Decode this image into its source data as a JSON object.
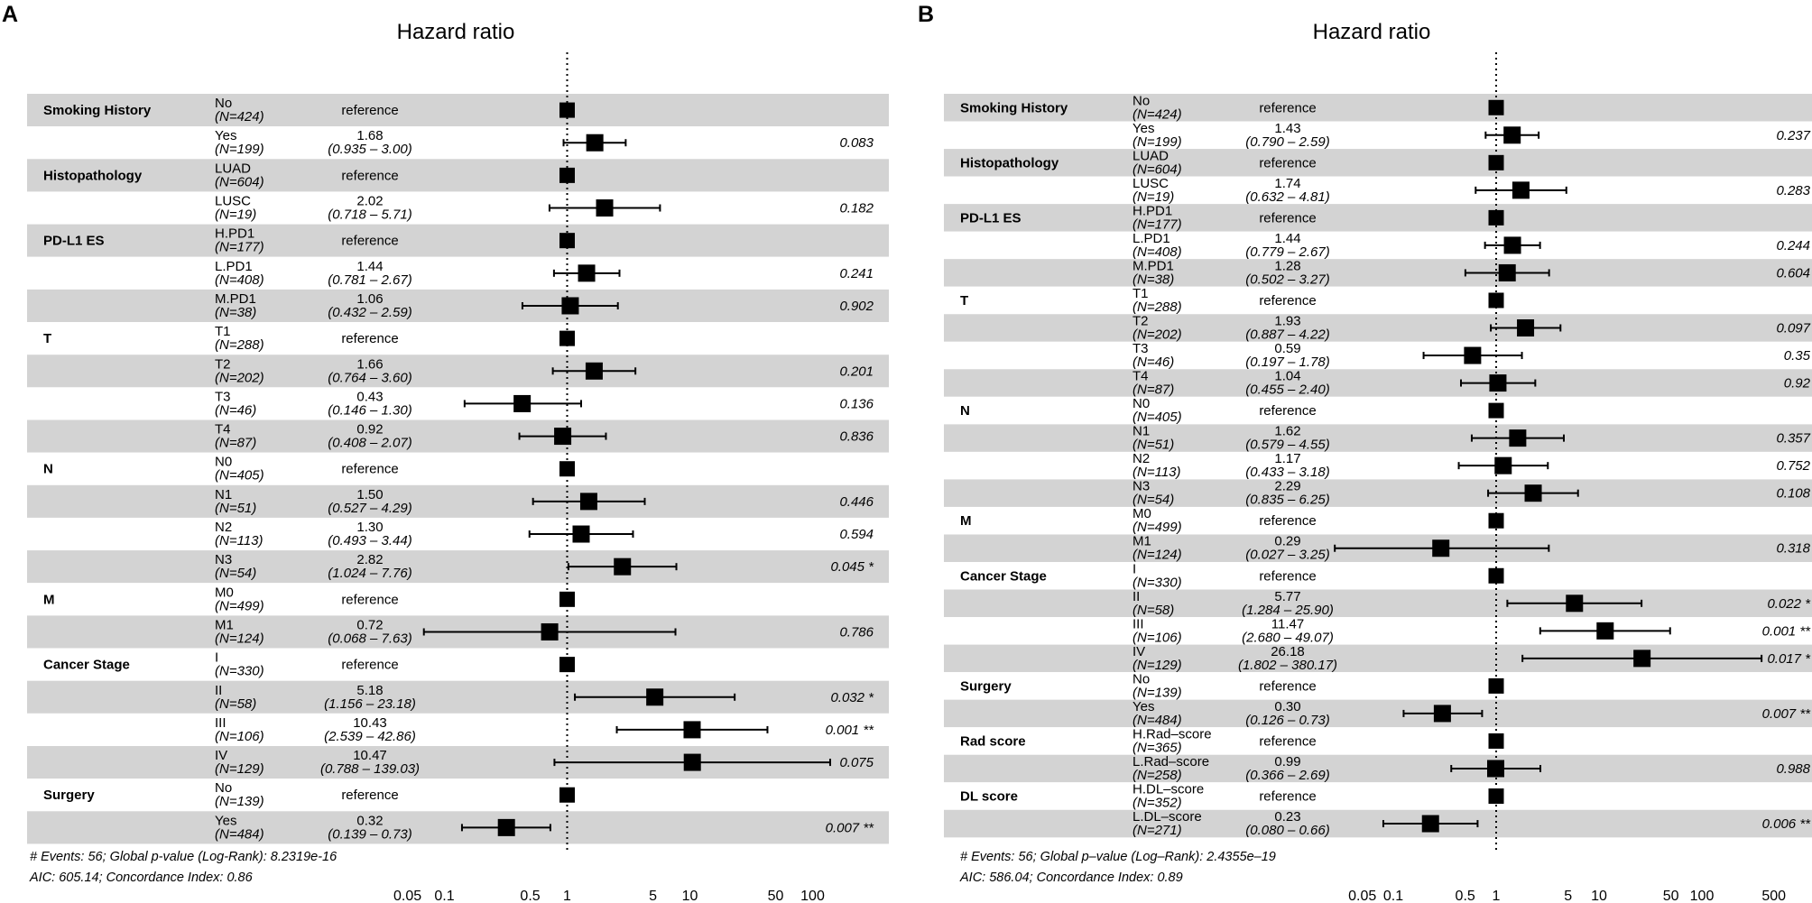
{
  "chart_data": [
    {
      "type": "forest",
      "panel": "A",
      "title": "Hazard ratio",
      "xscale": "log",
      "xlim": [
        0.04,
        400
      ],
      "reference_line": 1,
      "ticks": [
        {
          "value": 0.05,
          "label": "0.05"
        },
        {
          "value": 0.1,
          "label": "0.1"
        },
        {
          "value": 0.5,
          "label": "0.5"
        },
        {
          "value": 1,
          "label": "1"
        },
        {
          "value": 5,
          "label": "5"
        },
        {
          "value": 10,
          "label": "10"
        },
        {
          "value": 50,
          "label": "50"
        },
        {
          "value": 100,
          "label": "100"
        }
      ],
      "rows": [
        {
          "variable": "Smoking History",
          "level": "No",
          "n": "(N=424)",
          "ref": true,
          "est_text": "reference"
        },
        {
          "level": "Yes",
          "n": "(N=199)",
          "hr": 1.68,
          "lo": 0.935,
          "hi": 3.0,
          "est_text": "1.68",
          "ci_text": "(0.935 –   3.00)",
          "p": "0.083"
        },
        {
          "variable": "Histopathology",
          "level": "LUAD",
          "n": "(N=604)",
          "ref": true,
          "est_text": "reference"
        },
        {
          "level": "LUSC",
          "n": "(N=19)",
          "hr": 2.02,
          "lo": 0.718,
          "hi": 5.71,
          "est_text": "2.02",
          "ci_text": "(0.718 –   5.71)",
          "p": "0.182"
        },
        {
          "variable": "PD-L1 ES",
          "level": "H.PD1",
          "n": "(N=177)",
          "ref": true,
          "est_text": "reference"
        },
        {
          "level": "L.PD1",
          "n": "(N=408)",
          "hr": 1.44,
          "lo": 0.781,
          "hi": 2.67,
          "est_text": "1.44",
          "ci_text": "(0.781 –   2.67)",
          "p": "0.241"
        },
        {
          "level": "M.PD1",
          "n": "(N=38)",
          "hr": 1.06,
          "lo": 0.432,
          "hi": 2.59,
          "est_text": "1.06",
          "ci_text": "(0.432 –   2.59)",
          "p": "0.902"
        },
        {
          "variable": "T",
          "level": "T1",
          "n": "(N=288)",
          "ref": true,
          "est_text": "reference"
        },
        {
          "level": "T2",
          "n": "(N=202)",
          "hr": 1.66,
          "lo": 0.764,
          "hi": 3.6,
          "est_text": "1.66",
          "ci_text": "(0.764 –   3.60)",
          "p": "0.201"
        },
        {
          "level": "T3",
          "n": "(N=46)",
          "hr": 0.43,
          "lo": 0.146,
          "hi": 1.3,
          "est_text": "0.43",
          "ci_text": "(0.146 –   1.30)",
          "p": "0.136"
        },
        {
          "level": "T4",
          "n": "(N=87)",
          "hr": 0.92,
          "lo": 0.408,
          "hi": 2.07,
          "est_text": "0.92",
          "ci_text": "(0.408 –   2.07)",
          "p": "0.836"
        },
        {
          "variable": "N",
          "level": "N0",
          "n": "(N=405)",
          "ref": true,
          "est_text": "reference"
        },
        {
          "level": "N1",
          "n": "(N=51)",
          "hr": 1.5,
          "lo": 0.527,
          "hi": 4.29,
          "est_text": "1.50",
          "ci_text": "(0.527 –   4.29)",
          "p": "0.446"
        },
        {
          "level": "N2",
          "n": "(N=113)",
          "hr": 1.3,
          "lo": 0.493,
          "hi": 3.44,
          "est_text": "1.30",
          "ci_text": "(0.493 –   3.44)",
          "p": "0.594"
        },
        {
          "level": "N3",
          "n": "(N=54)",
          "hr": 2.82,
          "lo": 1.024,
          "hi": 7.76,
          "est_text": "2.82",
          "ci_text": "(1.024 –   7.76)",
          "p": "0.045 *"
        },
        {
          "variable": "M",
          "level": "M0",
          "n": "(N=499)",
          "ref": true,
          "est_text": "reference"
        },
        {
          "level": "M1",
          "n": "(N=124)",
          "hr": 0.72,
          "lo": 0.068,
          "hi": 7.63,
          "est_text": "0.72",
          "ci_text": "(0.068 –   7.63)",
          "p": "0.786"
        },
        {
          "variable": "Cancer Stage",
          "level": "I",
          "n": "(N=330)",
          "ref": true,
          "est_text": "reference"
        },
        {
          "level": "II",
          "n": "(N=58)",
          "hr": 5.18,
          "lo": 1.156,
          "hi": 23.18,
          "est_text": "5.18",
          "ci_text": "(1.156 –  23.18)",
          "p": "0.032 *"
        },
        {
          "level": "III",
          "n": "(N=106)",
          "hr": 10.43,
          "lo": 2.539,
          "hi": 42.86,
          "est_text": "10.43",
          "ci_text": "(2.539 –  42.86)",
          "p": "0.001 **"
        },
        {
          "level": "IV",
          "n": "(N=129)",
          "hr": 10.47,
          "lo": 0.788,
          "hi": 139.03,
          "est_text": "10.47",
          "ci_text": "(0.788 – 139.03)",
          "p": "0.075"
        },
        {
          "variable": "Surgery",
          "level": "No",
          "n": "(N=139)",
          "ref": true,
          "est_text": "reference"
        },
        {
          "level": "Yes",
          "n": "(N=484)",
          "hr": 0.32,
          "lo": 0.139,
          "hi": 0.73,
          "est_text": "0.32",
          "ci_text": "(0.139 –   0.73)",
          "p": "0.007 **"
        }
      ],
      "footer": [
        "# Events: 56; Global p-value (Log-Rank): 8.2319e-16",
        "AIC: 605.14; Concordance Index: 0.86"
      ]
    },
    {
      "type": "forest",
      "panel": "B",
      "title": "Hazard ratio",
      "xscale": "log",
      "xlim": [
        0.03,
        1000
      ],
      "reference_line": 1,
      "ticks": [
        {
          "value": 0.05,
          "label": "0.05"
        },
        {
          "value": 0.1,
          "label": "0.1"
        },
        {
          "value": 0.5,
          "label": "0.5"
        },
        {
          "value": 1,
          "label": "1"
        },
        {
          "value": 5,
          "label": "5"
        },
        {
          "value": 10,
          "label": "10"
        },
        {
          "value": 50,
          "label": "50"
        },
        {
          "value": 100,
          "label": "100"
        },
        {
          "value": 500,
          "label": "500"
        }
      ],
      "rows": [
        {
          "variable": "Smoking History",
          "level": "No",
          "n": "(N=424)",
          "ref": true,
          "est_text": "reference"
        },
        {
          "level": "Yes",
          "n": "(N=199)",
          "hr": 1.43,
          "lo": 0.79,
          "hi": 2.59,
          "est_text": "1.43",
          "ci_text": "(0.790 –   2.59)",
          "p": "0.237"
        },
        {
          "variable": "Histopathology",
          "level": "LUAD",
          "n": "(N=604)",
          "ref": true,
          "est_text": "reference"
        },
        {
          "level": "LUSC",
          "n": "(N=19)",
          "hr": 1.74,
          "lo": 0.632,
          "hi": 4.81,
          "est_text": "1.74",
          "ci_text": "(0.632 –   4.81)",
          "p": "0.283"
        },
        {
          "variable": "PD-L1 ES",
          "level": "H.PD1",
          "n": "(N=177)",
          "ref": true,
          "est_text": "reference"
        },
        {
          "level": "L.PD1",
          "n": "(N=408)",
          "hr": 1.44,
          "lo": 0.779,
          "hi": 2.67,
          "est_text": "1.44",
          "ci_text": "(0.779 –   2.67)",
          "p": "0.244"
        },
        {
          "level": "M.PD1",
          "n": "(N=38)",
          "hr": 1.28,
          "lo": 0.502,
          "hi": 3.27,
          "est_text": "1.28",
          "ci_text": "(0.502 –   3.27)",
          "p": "0.604"
        },
        {
          "variable": "T",
          "level": "T1",
          "n": "(N=288)",
          "ref": true,
          "est_text": "reference"
        },
        {
          "level": "T2",
          "n": "(N=202)",
          "hr": 1.93,
          "lo": 0.887,
          "hi": 4.22,
          "est_text": "1.93",
          "ci_text": "(0.887 –   4.22)",
          "p": "0.097"
        },
        {
          "level": "T3",
          "n": "(N=46)",
          "hr": 0.59,
          "lo": 0.197,
          "hi": 1.78,
          "est_text": "0.59",
          "ci_text": "(0.197 –   1.78)",
          "p": "0.35"
        },
        {
          "level": "T4",
          "n": "(N=87)",
          "hr": 1.04,
          "lo": 0.455,
          "hi": 2.4,
          "est_text": "1.04",
          "ci_text": "(0.455 –   2.40)",
          "p": "0.92"
        },
        {
          "variable": "N",
          "level": "N0",
          "n": "(N=405)",
          "ref": true,
          "est_text": "reference"
        },
        {
          "level": "N1",
          "n": "(N=51)",
          "hr": 1.62,
          "lo": 0.579,
          "hi": 4.55,
          "est_text": "1.62",
          "ci_text": "(0.579 –   4.55)",
          "p": "0.357"
        },
        {
          "level": "N2",
          "n": "(N=113)",
          "hr": 1.17,
          "lo": 0.433,
          "hi": 3.18,
          "est_text": "1.17",
          "ci_text": "(0.433 –   3.18)",
          "p": "0.752"
        },
        {
          "level": "N3",
          "n": "(N=54)",
          "hr": 2.29,
          "lo": 0.835,
          "hi": 6.25,
          "est_text": "2.29",
          "ci_text": "(0.835 –   6.25)",
          "p": "0.108"
        },
        {
          "variable": "M",
          "level": "M0",
          "n": "(N=499)",
          "ref": true,
          "est_text": "reference"
        },
        {
          "level": "M1",
          "n": "(N=124)",
          "hr": 0.29,
          "lo": 0.027,
          "hi": 3.25,
          "est_text": "0.29",
          "ci_text": "(0.027 –   3.25)",
          "p": "0.318"
        },
        {
          "variable": "Cancer Stage",
          "level": "I",
          "n": "(N=330)",
          "ref": true,
          "est_text": "reference"
        },
        {
          "level": "II",
          "n": "(N=58)",
          "hr": 5.77,
          "lo": 1.284,
          "hi": 25.9,
          "est_text": "5.77",
          "ci_text": "(1.284 –  25.90)",
          "p": "0.022 *"
        },
        {
          "level": "III",
          "n": "(N=106)",
          "hr": 11.47,
          "lo": 2.68,
          "hi": 49.07,
          "est_text": "11.47",
          "ci_text": "(2.680 –  49.07)",
          "p": "0.001 **"
        },
        {
          "level": "IV",
          "n": "(N=129)",
          "hr": 26.18,
          "lo": 1.802,
          "hi": 380.17,
          "est_text": "26.18",
          "ci_text": "(1.802 – 380.17)",
          "p": "0.017 *"
        },
        {
          "variable": "Surgery",
          "level": "No",
          "n": "(N=139)",
          "ref": true,
          "est_text": "reference"
        },
        {
          "level": "Yes",
          "n": "(N=484)",
          "hr": 0.3,
          "lo": 0.126,
          "hi": 0.73,
          "est_text": "0.30",
          "ci_text": "(0.126 –   0.73)",
          "p": "0.007 **"
        },
        {
          "variable": "Rad score",
          "level": "H.Rad–score",
          "n": "(N=365)",
          "ref": true,
          "est_text": "reference"
        },
        {
          "level": "L.Rad–score",
          "n": "(N=258)",
          "hr": 0.99,
          "lo": 0.366,
          "hi": 2.69,
          "est_text": "0.99",
          "ci_text": "(0.366 –   2.69)",
          "p": "0.988"
        },
        {
          "variable": "DL score",
          "level": "H.DL–score",
          "n": "(N=352)",
          "ref": true,
          "est_text": "reference"
        },
        {
          "level": "L.DL–score",
          "n": "(N=271)",
          "hr": 0.23,
          "lo": 0.08,
          "hi": 0.66,
          "est_text": "0.23",
          "ci_text": "(0.080 –   0.66)",
          "p": "0.006 **"
        }
      ],
      "footer": [
        "# Events: 56; Global p–value (Log–Rank): 2.4355e–19",
        "AIC: 586.04; Concordance Index: 0.89"
      ]
    }
  ]
}
